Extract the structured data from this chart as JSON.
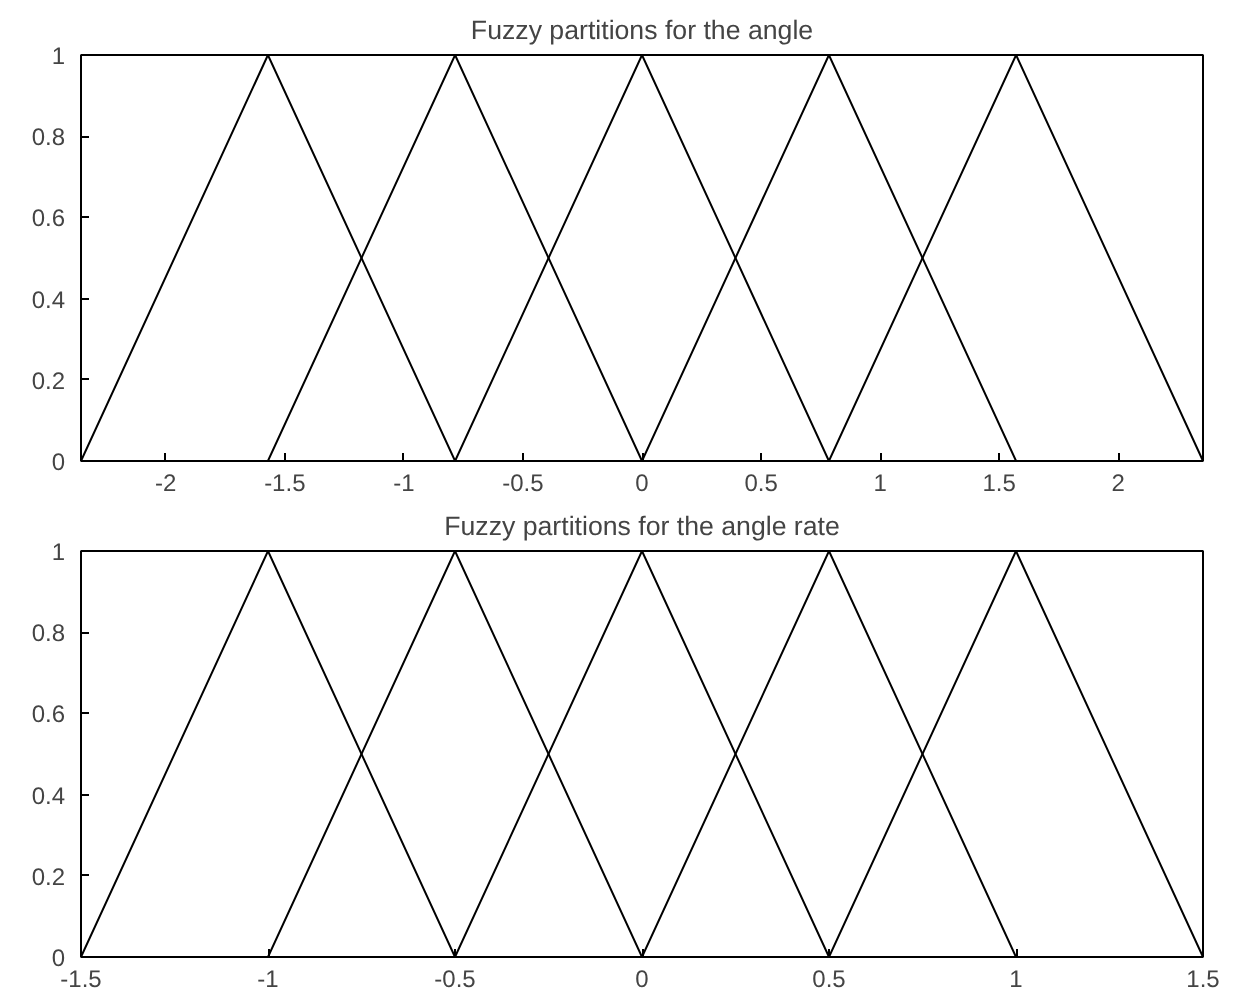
{
  "chart_data": [
    {
      "type": "line",
      "title": "Fuzzy partitions for the angle",
      "xlim": [
        -2.356,
        2.356
      ],
      "ylim": [
        0,
        1
      ],
      "xticks": [
        -2,
        -1.5,
        -1,
        -0.5,
        0,
        0.5,
        1,
        1.5,
        2
      ],
      "yticks": [
        0,
        0.2,
        0.4,
        0.6,
        0.8,
        1
      ],
      "grid": false,
      "series": [
        {
          "color": "#000000",
          "x": [
            -2.356,
            -1.571,
            -0.785
          ],
          "values": [
            0,
            1,
            0
          ]
        },
        {
          "color": "#000000",
          "x": [
            -1.571,
            -0.785,
            0
          ],
          "values": [
            0,
            1,
            0
          ]
        },
        {
          "color": "#000000",
          "x": [
            -0.785,
            0,
            0.785
          ],
          "values": [
            0,
            1,
            0
          ]
        },
        {
          "color": "#000000",
          "x": [
            0,
            0.785,
            1.571
          ],
          "values": [
            0,
            1,
            0
          ]
        },
        {
          "color": "#000000",
          "x": [
            0.785,
            1.571,
            2.356
          ],
          "values": [
            0,
            1,
            0
          ]
        }
      ]
    },
    {
      "type": "line",
      "title": "Fuzzy partitions for the angle rate",
      "xlim": [
        -1.5,
        1.5
      ],
      "ylim": [
        0,
        1
      ],
      "xticks": [
        -1.5,
        -1,
        -0.5,
        0,
        0.5,
        1,
        1.5
      ],
      "yticks": [
        0,
        0.2,
        0.4,
        0.6,
        0.8,
        1
      ],
      "grid": false,
      "series": [
        {
          "color": "#000000",
          "x": [
            -1.5,
            -1,
            -0.5
          ],
          "values": [
            0,
            1,
            0
          ]
        },
        {
          "color": "#000000",
          "x": [
            -1,
            -0.5,
            0
          ],
          "values": [
            0,
            1,
            0
          ]
        },
        {
          "color": "#000000",
          "x": [
            -0.5,
            0,
            0.5
          ],
          "values": [
            0,
            1,
            0
          ]
        },
        {
          "color": "#000000",
          "x": [
            0,
            0.5,
            1
          ],
          "values": [
            0,
            1,
            0
          ]
        },
        {
          "color": "#000000",
          "x": [
            0.5,
            1,
            1.5
          ],
          "values": [
            0,
            1,
            0
          ]
        }
      ]
    }
  ]
}
